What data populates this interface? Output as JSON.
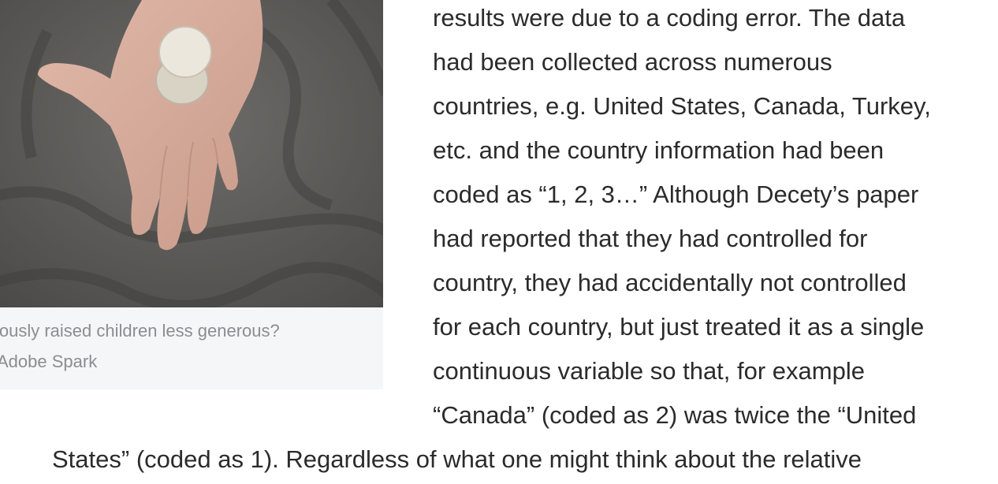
{
  "figure": {
    "photo_alt": "hand holding coins",
    "caption_line_1": "iously raised children less generous?",
    "caption_line_2": "Adobe Spark"
  },
  "article": {
    "lines": [
      "results were due to a coding error. The data",
      "had been collected across numerous",
      "countries, e.g. United States, Canada, Turkey,",
      "etc. and the country information had been",
      "coded as “1, 2, 3…” Although Decety’s paper",
      "had reported that they had controlled for",
      "country, they had accidentally not controlled",
      "for each country, but just treated it as a single",
      "continuous variable so that, for example",
      "“Canada” (coded as 2) was twice the “United",
      "States” (coded as 1). Regardless of what one might think about the relative"
    ]
  }
}
